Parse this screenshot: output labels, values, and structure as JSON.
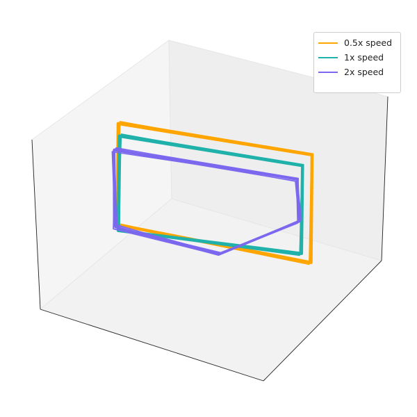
{
  "chart_data": {
    "type": "line",
    "projection": "3d",
    "title": "",
    "xlabel": "",
    "ylabel": "",
    "zlabel": "",
    "ticks_visible": false,
    "grid": false,
    "legend_placement": "top-right",
    "series": [
      {
        "name": "0.5x speed",
        "color": "#FFA500",
        "x": [
          -0.9,
          0.9,
          0.9,
          -0.9,
          -0.9
        ],
        "y": [
          -0.15,
          -0.15,
          -0.1,
          -0.1,
          -0.15
        ],
        "z": [
          0.85,
          0.85,
          -0.75,
          -0.65,
          0.85
        ]
      },
      {
        "name": "1x speed",
        "color": "#20B2AA",
        "x": [
          -0.85,
          0.85,
          0.85,
          -0.85,
          -0.85
        ],
        "y": [
          0.05,
          0.05,
          0.1,
          0.1,
          0.05
        ],
        "z": [
          0.8,
          0.8,
          -0.5,
          -0.6,
          0.8
        ]
      },
      {
        "name": "2x speed",
        "color": "#7B68EE",
        "x": [
          -0.85,
          0.85,
          0.85,
          0.1,
          -0.85,
          -0.85
        ],
        "y": [
          0.3,
          0.3,
          0.2,
          0.2,
          0.25,
          0.3
        ],
        "z": [
          0.75,
          0.75,
          0.05,
          -0.65,
          -0.45,
          0.75
        ]
      }
    ]
  }
}
